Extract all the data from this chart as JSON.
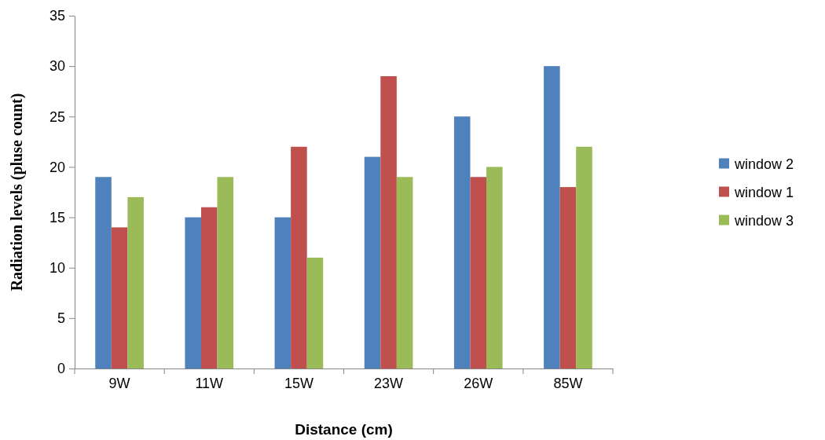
{
  "chart_data": {
    "type": "bar",
    "xlabel": "Distance (cm)",
    "ylabel": "Radiation levels (pluse count)",
    "categories": [
      "9W",
      "11W",
      "15W",
      "23W",
      "26W",
      "85W"
    ],
    "series": [
      {
        "name": "window 2",
        "color": "#4f81bd",
        "values": [
          19,
          15,
          15,
          21,
          25,
          30
        ]
      },
      {
        "name": "window 1",
        "color": "#c0504d",
        "values": [
          14,
          16,
          22,
          29,
          19,
          18
        ]
      },
      {
        "name": "window 3",
        "color": "#9bbb59",
        "values": [
          17,
          19,
          11,
          19,
          20,
          22
        ]
      }
    ],
    "ylim": [
      0,
      35
    ],
    "yticks": [
      0,
      5,
      10,
      15,
      20,
      25,
      30,
      35
    ],
    "grid": false,
    "legend": "right"
  }
}
